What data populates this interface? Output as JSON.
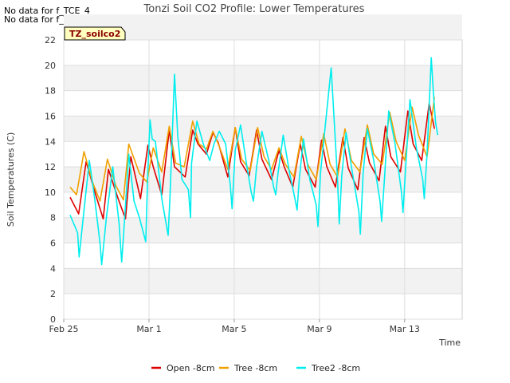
{
  "notes": [
    "No data for f_TCE_4",
    "No data for f_TCW_4"
  ],
  "badge": "TZ_soilco2",
  "chart_data": {
    "type": "line",
    "title": "Tonzi Soil CO2 Profile: Lower Temperatures",
    "xlabel": "Time",
    "ylabel": "Soil Temperatures (C)",
    "ylim": [
      0,
      22
    ],
    "yticks": [
      0,
      2,
      4,
      6,
      8,
      10,
      12,
      14,
      16,
      18,
      20,
      22
    ],
    "xlim_days": [
      0,
      18.7
    ],
    "xticks": [
      {
        "day": 0,
        "label": "Feb 25"
      },
      {
        "day": 4,
        "label": "Mar 1"
      },
      {
        "day": 8,
        "label": "Mar 5"
      },
      {
        "day": 12,
        "label": "Mar 9"
      },
      {
        "day": 16,
        "label": "Mar 13"
      }
    ],
    "grid": true,
    "legend_position": "bottom",
    "series": [
      {
        "name": "Open -8cm",
        "color": "#dd0000",
        "x": [
          0.3,
          0.7,
          1.05,
          1.5,
          1.85,
          2.1,
          2.55,
          2.9,
          3.15,
          3.6,
          3.95,
          4.2,
          4.6,
          4.95,
          5.2,
          5.7,
          6.05,
          6.3,
          6.7,
          7.0,
          7.25,
          7.7,
          8.05,
          8.3,
          8.7,
          9.05,
          9.3,
          9.75,
          10.1,
          10.35,
          10.75,
          11.1,
          11.35,
          11.8,
          12.1,
          12.35,
          12.75,
          13.1,
          13.35,
          13.8,
          14.1,
          14.35,
          14.8,
          15.1,
          15.35,
          15.8,
          16.15,
          16.4,
          16.8,
          17.15,
          17.4
        ],
        "values": [
          9.6,
          8.3,
          12.4,
          9.8,
          7.9,
          11.8,
          9.5,
          7.9,
          12.8,
          9.5,
          13.7,
          12.0,
          9.8,
          14.9,
          12.0,
          11.2,
          14.9,
          13.8,
          13.0,
          14.7,
          13.9,
          11.2,
          15.1,
          12.4,
          11.3,
          14.9,
          12.6,
          11.0,
          13.3,
          12.0,
          10.4,
          13.8,
          11.8,
          10.4,
          14.1,
          12.0,
          10.4,
          14.3,
          11.9,
          10.2,
          14.3,
          12.3,
          10.9,
          15.2,
          12.8,
          11.6,
          16.4,
          13.8,
          12.5,
          17.0,
          15.0
        ]
      },
      {
        "name": "Tree -8cm",
        "color": "#f0a000",
        "x": [
          0.3,
          0.6,
          0.95,
          1.35,
          1.7,
          2.05,
          2.45,
          2.8,
          3.05,
          3.55,
          3.9,
          4.2,
          4.6,
          4.95,
          5.25,
          5.65,
          6.05,
          6.35,
          6.7,
          7.0,
          7.3,
          7.7,
          8.05,
          8.35,
          8.75,
          9.1,
          9.4,
          9.75,
          10.1,
          10.4,
          10.8,
          11.15,
          11.45,
          11.85,
          12.2,
          12.5,
          12.85,
          13.2,
          13.5,
          13.9,
          14.25,
          14.55,
          14.95,
          15.3,
          15.6,
          16.0,
          16.35,
          16.65,
          17.05,
          17.4
        ],
        "values": [
          10.4,
          9.8,
          13.2,
          10.8,
          9.3,
          12.6,
          10.5,
          9.4,
          13.8,
          11.5,
          10.8,
          13.5,
          11.6,
          15.2,
          12.3,
          12.0,
          15.6,
          13.8,
          13.4,
          14.8,
          13.6,
          11.8,
          15.1,
          12.6,
          11.7,
          15.1,
          12.8,
          11.8,
          13.5,
          12.2,
          11.2,
          14.4,
          12.2,
          11.0,
          14.6,
          12.2,
          11.2,
          15.0,
          12.5,
          11.6,
          15.3,
          13.0,
          12.2,
          16.3,
          14.0,
          12.5,
          16.7,
          14.5,
          12.8,
          17.5
        ]
      },
      {
        "name": "Tree2 -8cm",
        "color": "#00eeee",
        "x": [
          0.3,
          0.65,
          0.72,
          0.9,
          1.2,
          1.45,
          1.7,
          1.78,
          2.0,
          2.3,
          2.6,
          2.72,
          2.8,
          3.05,
          3.3,
          3.55,
          3.85,
          3.95,
          4.05,
          4.15,
          4.3,
          4.6,
          4.9,
          4.98,
          5.05,
          5.2,
          5.35,
          5.55,
          5.85,
          5.95,
          6.0,
          6.25,
          6.55,
          6.85,
          7.05,
          7.3,
          7.6,
          7.82,
          7.9,
          8.05,
          8.3,
          8.6,
          8.8,
          8.9,
          9.05,
          9.3,
          9.65,
          9.85,
          9.95,
          10.05,
          10.3,
          10.6,
          10.85,
          10.95,
          11.05,
          11.25,
          11.55,
          11.85,
          11.93,
          12.05,
          12.25,
          12.55,
          12.85,
          12.93,
          13.05,
          13.25,
          13.55,
          13.85,
          13.92,
          14.05,
          14.25,
          14.55,
          14.85,
          14.92,
          15.05,
          15.25,
          15.55,
          15.85,
          15.92,
          16.05,
          16.25,
          16.55,
          16.85,
          16.92,
          17.05,
          17.25,
          17.35,
          17.45,
          17.55
        ],
        "values": [
          8.2,
          6.8,
          4.9,
          7.8,
          12.5,
          9.5,
          6.0,
          4.3,
          8.0,
          12.0,
          7.5,
          4.5,
          6.5,
          13.0,
          9.3,
          8.0,
          6.1,
          11.8,
          15.7,
          14.2,
          14.0,
          9.5,
          6.6,
          9.5,
          12.5,
          19.3,
          14.5,
          11.0,
          10.2,
          8.0,
          12.3,
          15.6,
          13.8,
          12.5,
          13.8,
          14.8,
          13.8,
          10.5,
          8.7,
          13.3,
          15.3,
          12.0,
          10.0,
          9.3,
          12.0,
          14.8,
          12.3,
          10.4,
          9.8,
          11.4,
          14.5,
          11.5,
          9.5,
          8.6,
          11.0,
          14.2,
          11.0,
          9.0,
          7.3,
          11.5,
          14.8,
          19.8,
          11.0,
          7.5,
          11.3,
          14.7,
          11.5,
          8.5,
          6.7,
          11.5,
          15.0,
          12.5,
          9.2,
          7.7,
          11.0,
          16.4,
          13.8,
          10.0,
          8.4,
          12.0,
          17.3,
          13.5,
          11.0,
          9.5,
          13.0,
          20.6,
          17.8,
          15.5,
          14.5
        ]
      }
    ]
  }
}
